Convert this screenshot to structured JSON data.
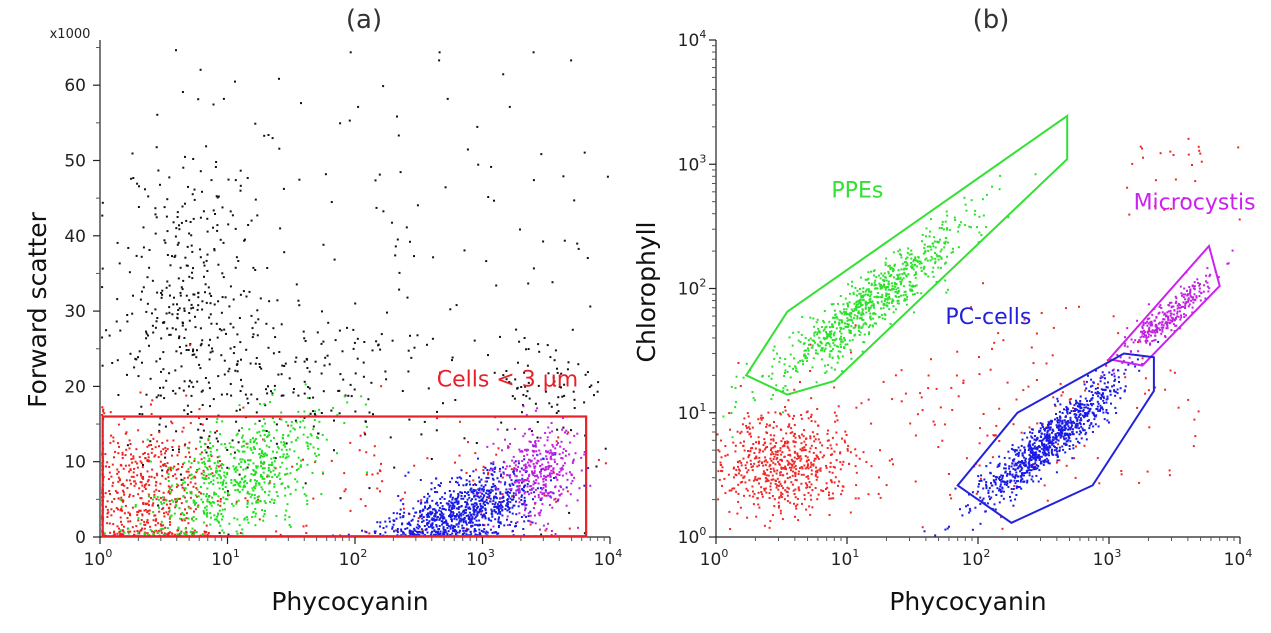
{
  "chart_data": [
    {
      "type": "scatter",
      "panel_label": "(a)",
      "xlabel": "Phycocyanin",
      "ylabel": "Forward scatter",
      "x_scale": "log",
      "xlim": [
        1,
        10000
      ],
      "ylim": [
        0,
        66000
      ],
      "x_ticks": [
        {
          "base": "10",
          "exp": "0",
          "value": 1
        },
        {
          "base": "10",
          "exp": "1",
          "value": 10
        },
        {
          "base": "10",
          "exp": "2",
          "value": 100
        },
        {
          "base": "10",
          "exp": "3",
          "value": 1000
        },
        {
          "base": "10",
          "exp": "4",
          "value": 10000
        }
      ],
      "y_multiplier_label": "x1000",
      "y_ticks": [
        {
          "label": "0",
          "value": 0
        },
        {
          "label": "10",
          "value": 10000
        },
        {
          "label": "20",
          "value": 20000
        },
        {
          "label": "30",
          "value": 30000
        },
        {
          "label": "40",
          "value": 40000
        },
        {
          "label": "50",
          "value": 50000
        },
        {
          "label": "60",
          "value": 60000
        }
      ],
      "grid": false,
      "gates": [
        {
          "label": "Cells < 3 µm",
          "color": "#e8202a",
          "shape": "rectangle",
          "x_range": [
            1.05,
            6500
          ],
          "y_range": [
            100,
            16000
          ]
        }
      ],
      "series": [
        {
          "color": "#111111",
          "clusters": [
            {
              "n": 380,
              "cx": 5,
              "cy": 32000,
              "sx": 0.3,
              "sy": 11000
            },
            {
              "n": 180,
              "cx": 40,
              "cy": 21000,
              "sx": 0.55,
              "sy": 5000
            },
            {
              "n": 120,
              "cx": 300,
              "cy": 35000,
              "sx": 0.9,
              "sy": 18000
            },
            {
              "n": 80,
              "cx": 3000,
              "cy": 20000,
              "sx": 0.3,
              "sy": 3500
            }
          ]
        },
        {
          "color": "#f0201e",
          "clusters": [
            {
              "n": 600,
              "cx": 2.2,
              "cy": 6000,
              "sx": 0.3,
              "sy": 5000
            },
            {
              "n": 120,
              "cx": 300,
              "cy": 7000,
              "sx": 0.8,
              "sy": 5000
            }
          ]
        },
        {
          "color": "#1fe01f",
          "clusters": [
            {
              "n": 650,
              "cx": 12,
              "cy": 8000,
              "sx": 0.35,
              "sy": 3500,
              "slope": 7000
            }
          ]
        },
        {
          "color": "#1a1ae6",
          "clusters": [
            {
              "n": 900,
              "cx": 700,
              "cy": 3500,
              "sx": 0.3,
              "sy": 2200,
              "slope": 4500
            }
          ]
        },
        {
          "color": "#c020e0",
          "clusters": [
            {
              "n": 350,
              "cx": 2800,
              "cy": 8500,
              "sx": 0.15,
              "sy": 3000
            }
          ]
        }
      ]
    },
    {
      "type": "scatter",
      "panel_label": "(b)",
      "xlabel": "Phycocyanin",
      "ylabel": "Chlorophyll",
      "x_scale": "log",
      "y_scale": "log",
      "xlim": [
        1,
        10000
      ],
      "ylim": [
        1,
        10000
      ],
      "x_ticks": [
        {
          "base": "10",
          "exp": "0",
          "value": 1
        },
        {
          "base": "10",
          "exp": "1",
          "value": 10
        },
        {
          "base": "10",
          "exp": "2",
          "value": 100
        },
        {
          "base": "10",
          "exp": "3",
          "value": 1000
        },
        {
          "base": "10",
          "exp": "4",
          "value": 10000
        }
      ],
      "y_ticks": [
        {
          "base": "10",
          "exp": "0",
          "value": 1
        },
        {
          "base": "10",
          "exp": "1",
          "value": 10
        },
        {
          "base": "10",
          "exp": "2",
          "value": 100
        },
        {
          "base": "10",
          "exp": "3",
          "value": 1000
        },
        {
          "base": "10",
          "exp": "4",
          "value": 10000
        }
      ],
      "grid": false,
      "gates": [
        {
          "label": "PPEs",
          "color": "#33e033",
          "shape": "polygon",
          "vertices": [
            [
              1.7,
              20
            ],
            [
              3.5,
              65
            ],
            [
              480,
              2450
            ],
            [
              480,
              1100
            ],
            [
              8,
              18
            ],
            [
              3.5,
              14
            ]
          ]
        },
        {
          "label": "Microcystis",
          "color": "#cc22ee",
          "shape": "polygon",
          "vertices": [
            [
              1000,
              27
            ],
            [
              5800,
              220
            ],
            [
              7000,
              105
            ],
            [
              1800,
              24
            ]
          ]
        },
        {
          "label": "PC-cells",
          "color": "#2222dd",
          "shape": "polygon",
          "vertices": [
            [
              70,
              2.6
            ],
            [
              200,
              10
            ],
            [
              1300,
              30
            ],
            [
              2200,
              28
            ],
            [
              2200,
              15
            ],
            [
              750,
              2.6
            ],
            [
              180,
              1.3
            ]
          ]
        }
      ],
      "series": [
        {
          "color": "#f02828",
          "clusters": [
            {
              "n": 650,
              "cx": 3,
              "cy": 4,
              "sx": 0.28,
              "sy": 0.2
            },
            {
              "n": 170,
              "cx": 150,
              "cy": 10,
              "sx": 0.8,
              "sy": 0.45
            },
            {
              "n": 25,
              "cx": 3000,
              "cy": 900,
              "sx": 0.2,
              "sy": 0.2
            }
          ]
        },
        {
          "color": "#2ce02c",
          "clusters": [
            {
              "n": 800,
              "cx": 15,
              "cy": 80,
              "sx": 0.38,
              "sy": 0.12,
              "slope": 0.8
            }
          ]
        },
        {
          "color": "#1a1ae6",
          "clusters": [
            {
              "n": 900,
              "cx": 350,
              "cy": 6,
              "sx": 0.28,
              "sy": 0.1,
              "slope": 0.85
            }
          ]
        },
        {
          "color": "#c020e0",
          "clusters": [
            {
              "n": 280,
              "cx": 2700,
              "cy": 60,
              "sx": 0.18,
              "sy": 0.07,
              "slope": 0.9
            }
          ]
        }
      ]
    }
  ]
}
